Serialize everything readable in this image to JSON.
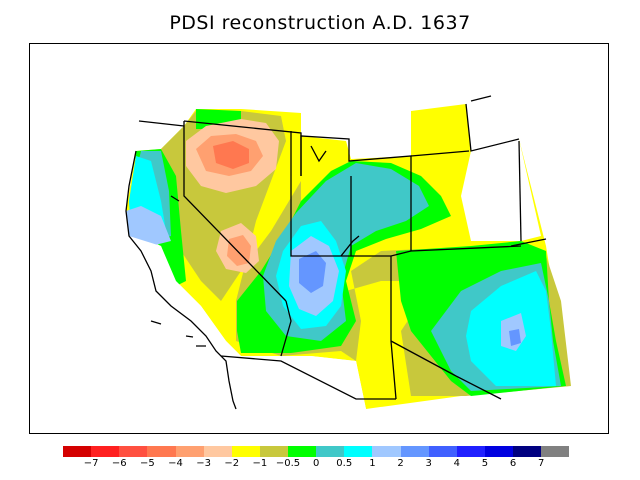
{
  "title": "PDSI reconstruction A.D. 1637",
  "legend": {
    "colors": [
      "#d40000",
      "#ff2020",
      "#ff5040",
      "#ff7850",
      "#ffa070",
      "#ffc8a0",
      "#ffff00",
      "#c8c83c",
      "#00ff00",
      "#40c8c8",
      "#00ffff",
      "#a0c8ff",
      "#6496ff",
      "#4060ff",
      "#2020ff",
      "#0000e0",
      "#000080",
      "#808080"
    ],
    "tick_labels": [
      "−7",
      "−6",
      "−5",
      "−4",
      "−3",
      "−2",
      "−1",
      "−0.5",
      "0",
      "0.5",
      "1",
      "2",
      "3",
      "4",
      "5",
      "6",
      "7"
    ]
  }
}
